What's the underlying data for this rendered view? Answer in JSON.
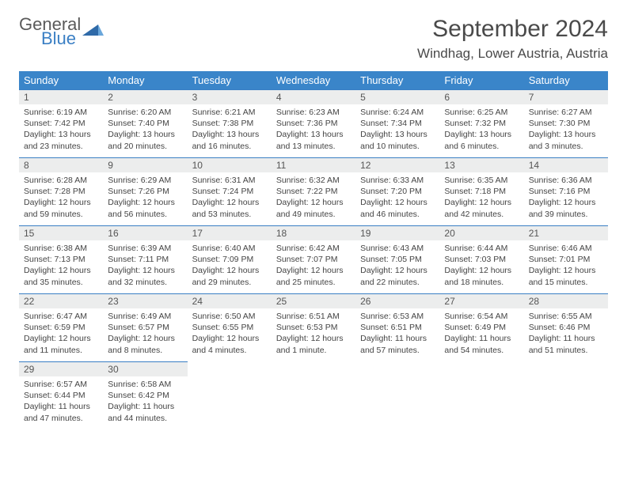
{
  "logo": {
    "word1": "General",
    "word2": "Blue"
  },
  "title": "September 2024",
  "location": "Windhag, Lower Austria, Austria",
  "colors": {
    "header_bg": "#3a85c9",
    "header_text": "#ffffff",
    "daynum_bg": "#eceded",
    "border": "#3a7fc4",
    "logo_gray": "#5a5a5a",
    "logo_blue": "#3a7fc4"
  },
  "weekdays": [
    "Sunday",
    "Monday",
    "Tuesday",
    "Wednesday",
    "Thursday",
    "Friday",
    "Saturday"
  ],
  "weeks": [
    [
      {
        "n": "1",
        "sr": "Sunrise: 6:19 AM",
        "ss": "Sunset: 7:42 PM",
        "dl": "Daylight: 13 hours and 23 minutes."
      },
      {
        "n": "2",
        "sr": "Sunrise: 6:20 AM",
        "ss": "Sunset: 7:40 PM",
        "dl": "Daylight: 13 hours and 20 minutes."
      },
      {
        "n": "3",
        "sr": "Sunrise: 6:21 AM",
        "ss": "Sunset: 7:38 PM",
        "dl": "Daylight: 13 hours and 16 minutes."
      },
      {
        "n": "4",
        "sr": "Sunrise: 6:23 AM",
        "ss": "Sunset: 7:36 PM",
        "dl": "Daylight: 13 hours and 13 minutes."
      },
      {
        "n": "5",
        "sr": "Sunrise: 6:24 AM",
        "ss": "Sunset: 7:34 PM",
        "dl": "Daylight: 13 hours and 10 minutes."
      },
      {
        "n": "6",
        "sr": "Sunrise: 6:25 AM",
        "ss": "Sunset: 7:32 PM",
        "dl": "Daylight: 13 hours and 6 minutes."
      },
      {
        "n": "7",
        "sr": "Sunrise: 6:27 AM",
        "ss": "Sunset: 7:30 PM",
        "dl": "Daylight: 13 hours and 3 minutes."
      }
    ],
    [
      {
        "n": "8",
        "sr": "Sunrise: 6:28 AM",
        "ss": "Sunset: 7:28 PM",
        "dl": "Daylight: 12 hours and 59 minutes."
      },
      {
        "n": "9",
        "sr": "Sunrise: 6:29 AM",
        "ss": "Sunset: 7:26 PM",
        "dl": "Daylight: 12 hours and 56 minutes."
      },
      {
        "n": "10",
        "sr": "Sunrise: 6:31 AM",
        "ss": "Sunset: 7:24 PM",
        "dl": "Daylight: 12 hours and 53 minutes."
      },
      {
        "n": "11",
        "sr": "Sunrise: 6:32 AM",
        "ss": "Sunset: 7:22 PM",
        "dl": "Daylight: 12 hours and 49 minutes."
      },
      {
        "n": "12",
        "sr": "Sunrise: 6:33 AM",
        "ss": "Sunset: 7:20 PM",
        "dl": "Daylight: 12 hours and 46 minutes."
      },
      {
        "n": "13",
        "sr": "Sunrise: 6:35 AM",
        "ss": "Sunset: 7:18 PM",
        "dl": "Daylight: 12 hours and 42 minutes."
      },
      {
        "n": "14",
        "sr": "Sunrise: 6:36 AM",
        "ss": "Sunset: 7:16 PM",
        "dl": "Daylight: 12 hours and 39 minutes."
      }
    ],
    [
      {
        "n": "15",
        "sr": "Sunrise: 6:38 AM",
        "ss": "Sunset: 7:13 PM",
        "dl": "Daylight: 12 hours and 35 minutes."
      },
      {
        "n": "16",
        "sr": "Sunrise: 6:39 AM",
        "ss": "Sunset: 7:11 PM",
        "dl": "Daylight: 12 hours and 32 minutes."
      },
      {
        "n": "17",
        "sr": "Sunrise: 6:40 AM",
        "ss": "Sunset: 7:09 PM",
        "dl": "Daylight: 12 hours and 29 minutes."
      },
      {
        "n": "18",
        "sr": "Sunrise: 6:42 AM",
        "ss": "Sunset: 7:07 PM",
        "dl": "Daylight: 12 hours and 25 minutes."
      },
      {
        "n": "19",
        "sr": "Sunrise: 6:43 AM",
        "ss": "Sunset: 7:05 PM",
        "dl": "Daylight: 12 hours and 22 minutes."
      },
      {
        "n": "20",
        "sr": "Sunrise: 6:44 AM",
        "ss": "Sunset: 7:03 PM",
        "dl": "Daylight: 12 hours and 18 minutes."
      },
      {
        "n": "21",
        "sr": "Sunrise: 6:46 AM",
        "ss": "Sunset: 7:01 PM",
        "dl": "Daylight: 12 hours and 15 minutes."
      }
    ],
    [
      {
        "n": "22",
        "sr": "Sunrise: 6:47 AM",
        "ss": "Sunset: 6:59 PM",
        "dl": "Daylight: 12 hours and 11 minutes."
      },
      {
        "n": "23",
        "sr": "Sunrise: 6:49 AM",
        "ss": "Sunset: 6:57 PM",
        "dl": "Daylight: 12 hours and 8 minutes."
      },
      {
        "n": "24",
        "sr": "Sunrise: 6:50 AM",
        "ss": "Sunset: 6:55 PM",
        "dl": "Daylight: 12 hours and 4 minutes."
      },
      {
        "n": "25",
        "sr": "Sunrise: 6:51 AM",
        "ss": "Sunset: 6:53 PM",
        "dl": "Daylight: 12 hours and 1 minute."
      },
      {
        "n": "26",
        "sr": "Sunrise: 6:53 AM",
        "ss": "Sunset: 6:51 PM",
        "dl": "Daylight: 11 hours and 57 minutes."
      },
      {
        "n": "27",
        "sr": "Sunrise: 6:54 AM",
        "ss": "Sunset: 6:49 PM",
        "dl": "Daylight: 11 hours and 54 minutes."
      },
      {
        "n": "28",
        "sr": "Sunrise: 6:55 AM",
        "ss": "Sunset: 6:46 PM",
        "dl": "Daylight: 11 hours and 51 minutes."
      }
    ],
    [
      {
        "n": "29",
        "sr": "Sunrise: 6:57 AM",
        "ss": "Sunset: 6:44 PM",
        "dl": "Daylight: 11 hours and 47 minutes."
      },
      {
        "n": "30",
        "sr": "Sunrise: 6:58 AM",
        "ss": "Sunset: 6:42 PM",
        "dl": "Daylight: 11 hours and 44 minutes."
      },
      null,
      null,
      null,
      null,
      null
    ]
  ]
}
